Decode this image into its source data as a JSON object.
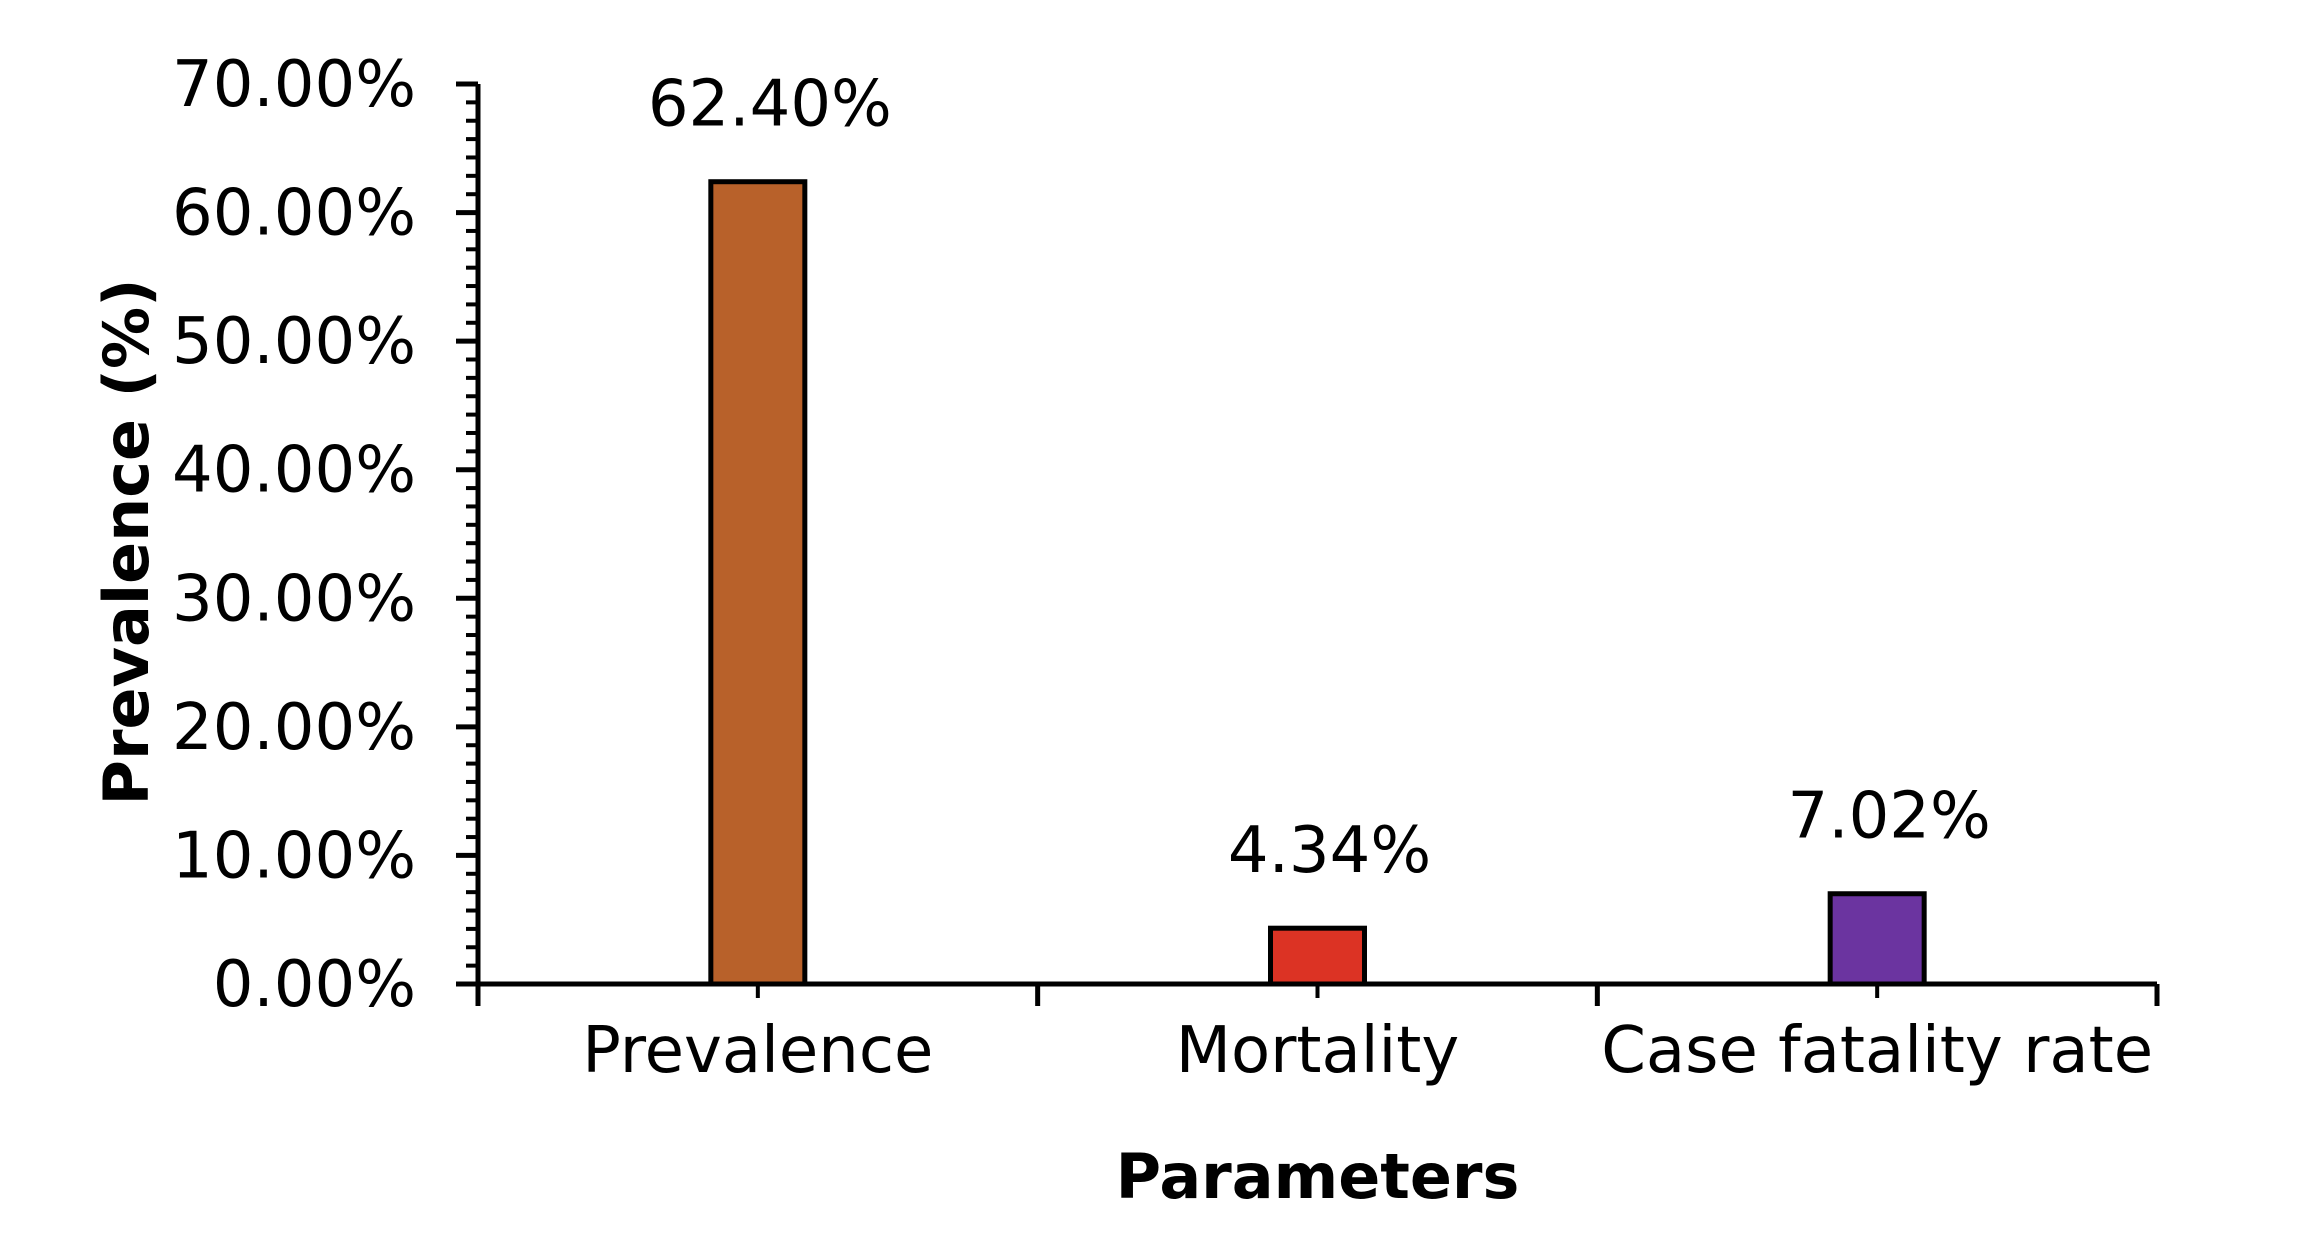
{
  "chart_data": {
    "type": "bar",
    "categories": [
      "Prevalence",
      "Mortality",
      "Case fatality rate"
    ],
    "values": [
      62.4,
      4.34,
      7.02
    ],
    "data_labels": [
      "62.40%",
      "4.34%",
      "7.02%"
    ],
    "colors": [
      "#B8612A",
      "#DC3324",
      "#6B34A0"
    ],
    "title": "",
    "xlabel": "Parameters",
    "ylabel": "Prevalence (%)",
    "ylim": [
      0,
      70
    ],
    "y_ticks": [
      0,
      10,
      20,
      30,
      40,
      50,
      60,
      70
    ],
    "y_tick_labels": [
      "0.00%",
      "10.00%",
      "20.00%",
      "30.00%",
      "40.00%",
      "50.00%",
      "60.00%",
      "70.00%"
    ],
    "grid": false,
    "legend": "none"
  }
}
